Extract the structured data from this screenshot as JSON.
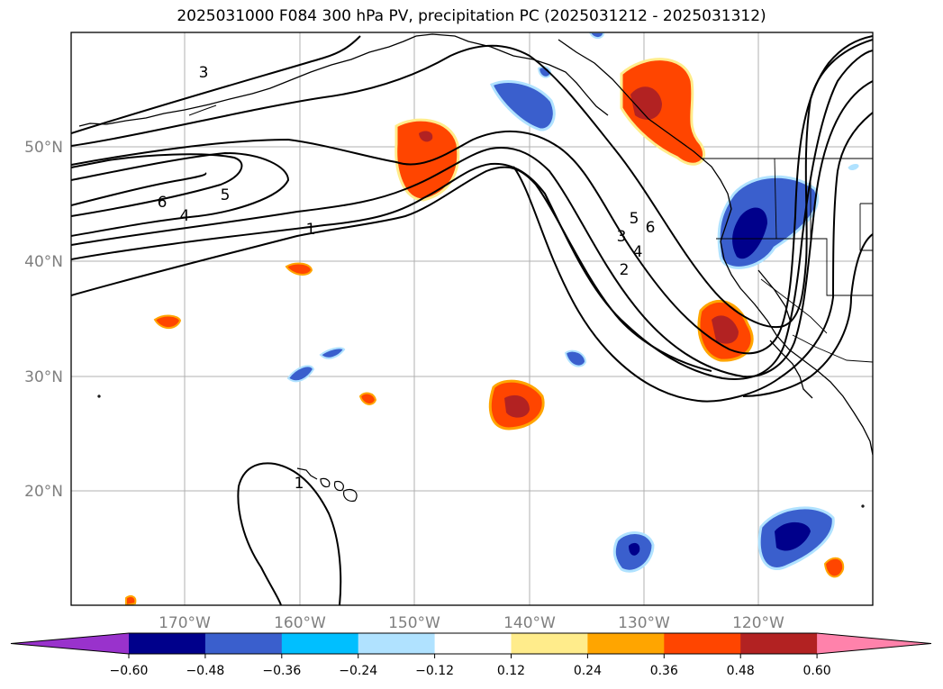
{
  "title": "2025031000 F084 300 hPa PV, precipitation PC (2025031212 - 2025031312)",
  "longitude_labels": [
    "170°W",
    "160°W",
    "150°W",
    "140°W",
    "130°W",
    "120°W"
  ],
  "latitude_labels": [
    "50°N",
    "40°N",
    "30°N",
    "20°N"
  ],
  "contour_labels": [
    "3",
    "6",
    "5",
    "4",
    "1",
    "5",
    "6",
    "3",
    "4",
    "2",
    "1"
  ],
  "colorbar": {
    "ticks": [
      "−0.60",
      "−0.48",
      "−0.36",
      "−0.24",
      "−0.12",
      "0.12",
      "0.24",
      "0.36",
      "0.48",
      "0.60"
    ],
    "colors": [
      "#9932cc",
      "#00008b",
      "#3a5fcd",
      "#00bfff",
      "#b0e2ff",
      "#ffffff",
      "#ffec8b",
      "#ffa500",
      "#ff4500",
      "#b22222",
      "#ff82ab"
    ]
  },
  "colors": {
    "grid": "#b0b0b0",
    "contour": "#000000",
    "coast": "#000000"
  }
}
